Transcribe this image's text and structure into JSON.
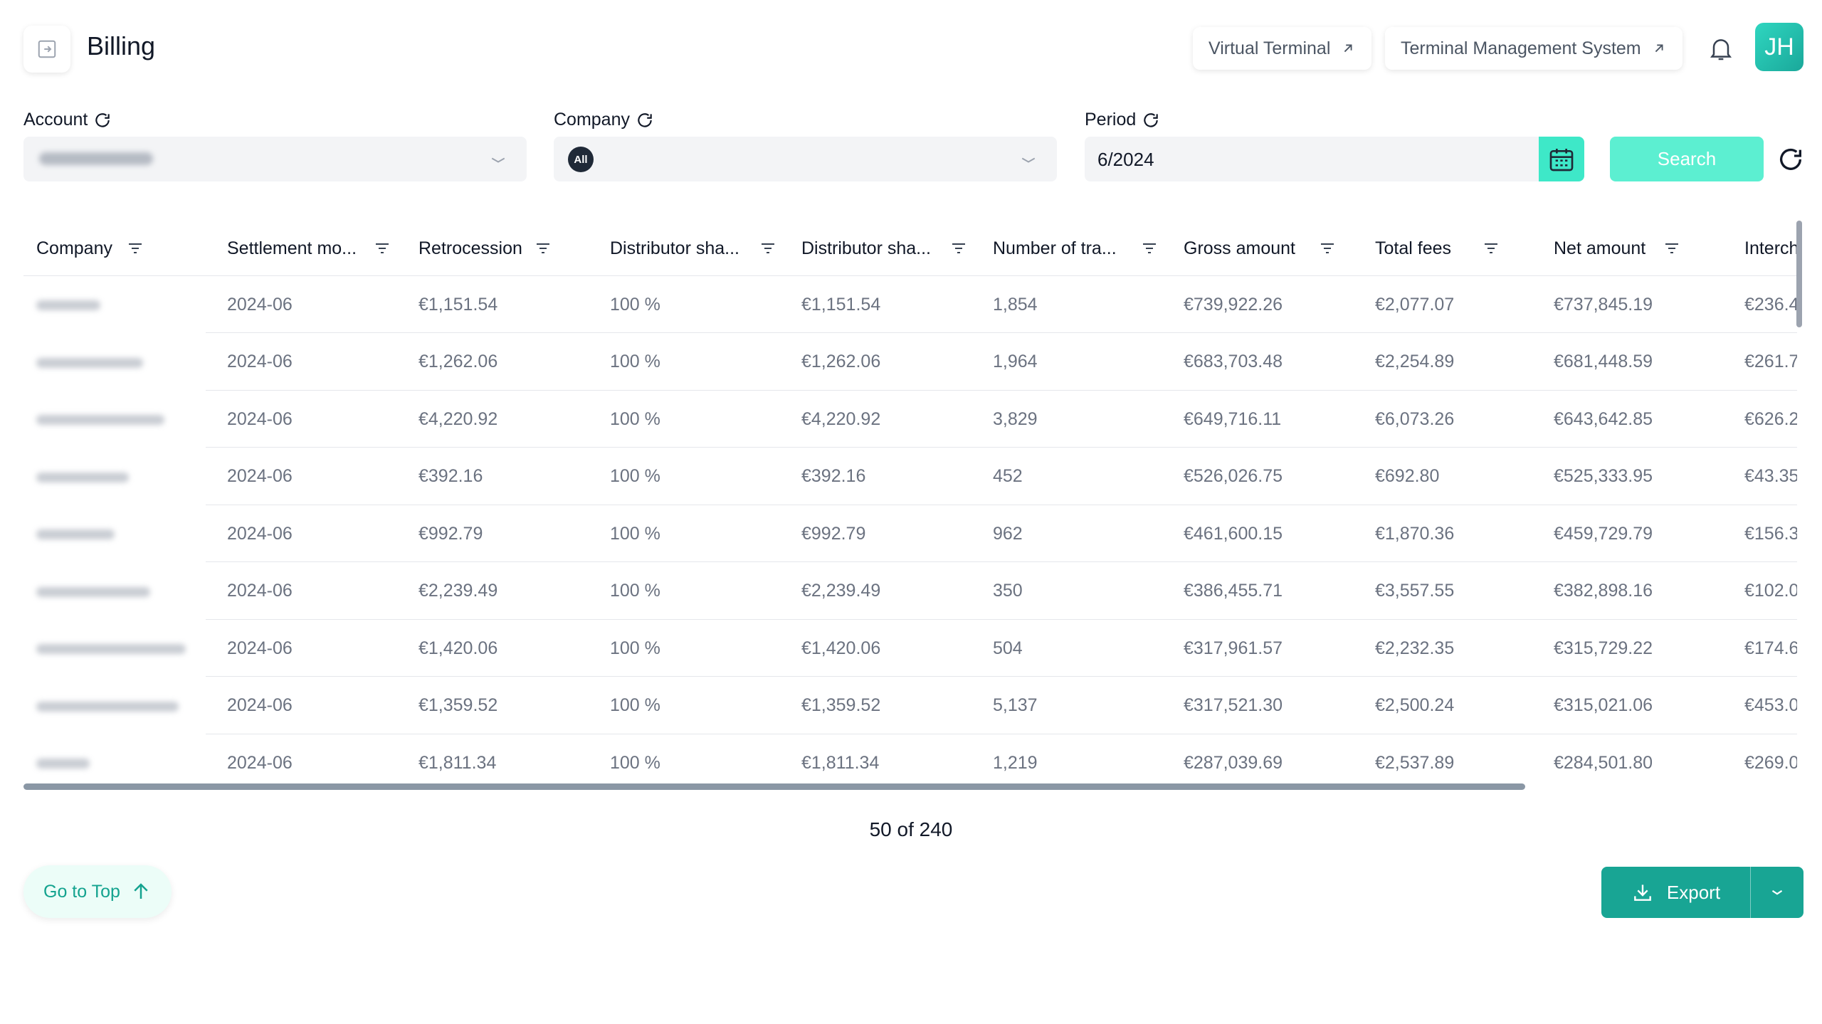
{
  "header": {
    "title": "Billing",
    "virtual_terminal": "Virtual Terminal",
    "tms": "Terminal Management System",
    "avatar_initials": "JH"
  },
  "filters": {
    "account_label": "Account",
    "company_label": "Company",
    "company_badge": "All",
    "period_label": "Period",
    "period_value": "6/2024",
    "search_label": "Search"
  },
  "table": {
    "columns": [
      "Company",
      "Settlement mo...",
      "Retrocession",
      "Distributor sha...",
      "Distributor sha...",
      "Number of tra...",
      "Gross amount",
      "Total fees",
      "Net amount",
      "Interch"
    ],
    "rows": [
      {
        "month": "2024-06",
        "retro": "€1,151.54",
        "share_pct": "100 %",
        "share_amt": "€1,151.54",
        "tx": "1,854",
        "gross": "€739,922.26",
        "fees": "€2,077.07",
        "net": "€737,845.19",
        "interch": "€236.4"
      },
      {
        "month": "2024-06",
        "retro": "€1,262.06",
        "share_pct": "100 %",
        "share_amt": "€1,262.06",
        "tx": "1,964",
        "gross": "€683,703.48",
        "fees": "€2,254.89",
        "net": "€681,448.59",
        "interch": "€261.7"
      },
      {
        "month": "2024-06",
        "retro": "€4,220.92",
        "share_pct": "100 %",
        "share_amt": "€4,220.92",
        "tx": "3,829",
        "gross": "€649,716.11",
        "fees": "€6,073.26",
        "net": "€643,642.85",
        "interch": "€626.2"
      },
      {
        "month": "2024-06",
        "retro": "€392.16",
        "share_pct": "100 %",
        "share_amt": "€392.16",
        "tx": "452",
        "gross": "€526,026.75",
        "fees": "€692.80",
        "net": "€525,333.95",
        "interch": "€43.35"
      },
      {
        "month": "2024-06",
        "retro": "€992.79",
        "share_pct": "100 %",
        "share_amt": "€992.79",
        "tx": "962",
        "gross": "€461,600.15",
        "fees": "€1,870.36",
        "net": "€459,729.79",
        "interch": "€156.3"
      },
      {
        "month": "2024-06",
        "retro": "€2,239.49",
        "share_pct": "100 %",
        "share_amt": "€2,239.49",
        "tx": "350",
        "gross": "€386,455.71",
        "fees": "€3,557.55",
        "net": "€382,898.16",
        "interch": "€102.0"
      },
      {
        "month": "2024-06",
        "retro": "€1,420.06",
        "share_pct": "100 %",
        "share_amt": "€1,420.06",
        "tx": "504",
        "gross": "€317,961.57",
        "fees": "€2,232.35",
        "net": "€315,729.22",
        "interch": "€174.6"
      },
      {
        "month": "2024-06",
        "retro": "€1,359.52",
        "share_pct": "100 %",
        "share_amt": "€1,359.52",
        "tx": "5,137",
        "gross": "€317,521.30",
        "fees": "€2,500.24",
        "net": "€315,021.06",
        "interch": "€453.0"
      },
      {
        "month": "2024-06",
        "retro": "€1,811.34",
        "share_pct": "100 %",
        "share_amt": "€1,811.34",
        "tx": "1,219",
        "gross": "€287,039.69",
        "fees": "€2,537.89",
        "net": "€284,501.80",
        "interch": "€269.0"
      }
    ]
  },
  "pagination": {
    "count_text": "50 of 240"
  },
  "actions": {
    "go_top": "Go to Top",
    "export": "Export"
  },
  "colors": {
    "accent": "#18a594",
    "accent_light": "#5cefd1"
  }
}
